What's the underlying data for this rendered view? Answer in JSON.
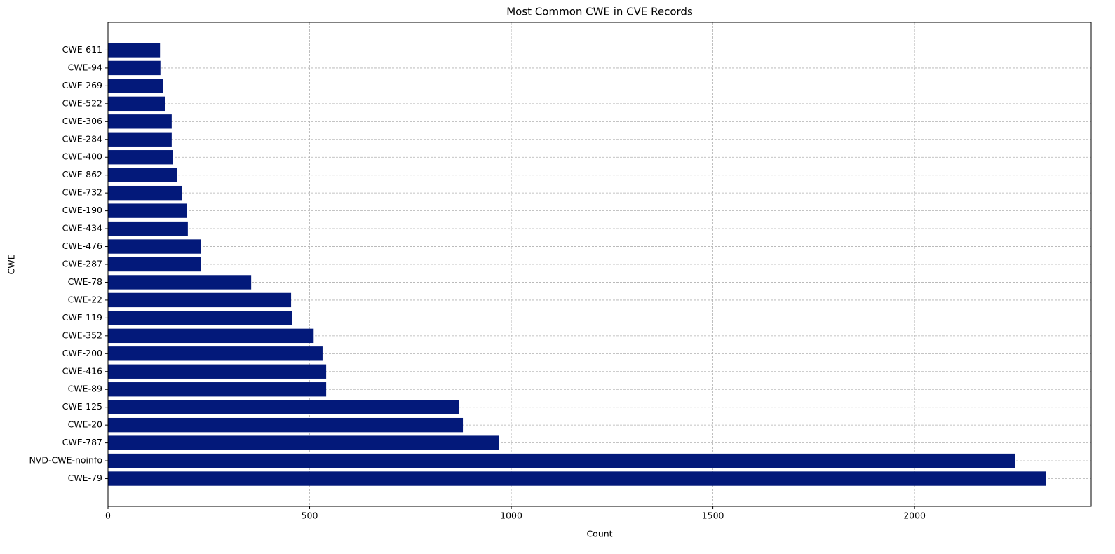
{
  "chart_data": {
    "type": "barh",
    "title": "Most Common CWE in CVE Records",
    "x_label": "Count",
    "y_label": "CWE",
    "categories": [
      "CWE-79",
      "NVD-CWE-noinfo",
      "CWE-787",
      "CWE-20",
      "CWE-125",
      "CWE-89",
      "CWE-416",
      "CWE-200",
      "CWE-352",
      "CWE-119",
      "CWE-22",
      "CWE-78",
      "CWE-287",
      "CWE-476",
      "CWE-434",
      "CWE-190",
      "CWE-732",
      "CWE-862",
      "CWE-400",
      "CWE-284",
      "CWE-306",
      "CWE-522",
      "CWE-269",
      "CWE-94",
      "CWE-611"
    ],
    "values": [
      2325,
      2249,
      970,
      880,
      870,
      541,
      541,
      532,
      510,
      457,
      454,
      355,
      231,
      230,
      198,
      195,
      184,
      172,
      160,
      158,
      158,
      141,
      136,
      130,
      129
    ],
    "color": "#03197a",
    "xlim": [
      0,
      2438
    ],
    "xticks": [
      0,
      500,
      1000,
      1500,
      2000
    ],
    "grid": true
  }
}
